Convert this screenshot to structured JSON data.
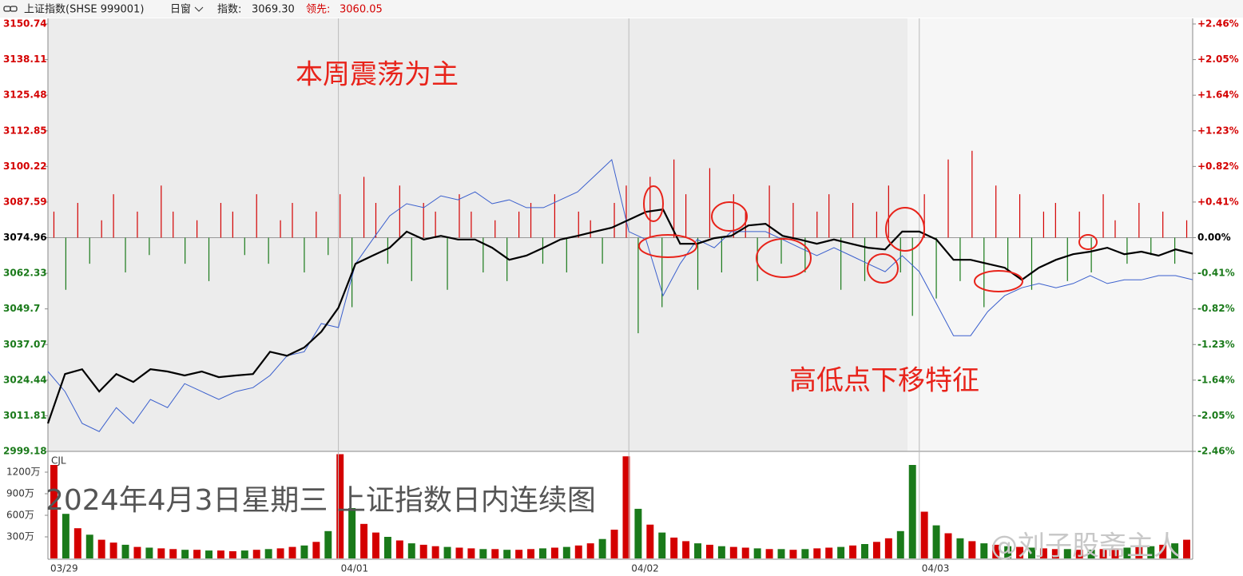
{
  "header": {
    "name": "上证指数(SHSE 999001)",
    "window": "日窗",
    "index_label": "指数:",
    "index_value": "3069.30",
    "lead_label": "领先:",
    "lead_value": "3060.05"
  },
  "chart_data": {
    "type": "line",
    "annotations": [
      "本周震荡为主",
      "高低点下移特征"
    ],
    "title": "2024年4月3日星期三  上证指数日内连续图",
    "watermark": "@刘子股斋主人",
    "categories": [
      "03/29",
      null,
      null,
      null,
      null,
      null,
      null,
      null,
      null,
      null,
      null,
      null,
      null,
      null,
      null,
      null,
      null,
      "04/01",
      null,
      null,
      null,
      null,
      null,
      null,
      null,
      null,
      null,
      null,
      null,
      null,
      null,
      null,
      null,
      null,
      "04/02",
      null,
      null,
      null,
      null,
      null,
      null,
      null,
      null,
      null,
      null,
      null,
      null,
      null,
      null,
      null,
      null,
      "04/03",
      null,
      null,
      null,
      null,
      null,
      null,
      null,
      null,
      null,
      null,
      null,
      null,
      null,
      null,
      null,
      null
    ],
    "series": [
      {
        "name": "上证指数",
        "color": "#000000",
        "values": [
          3009.1,
          3026.6,
          3028.3,
          3020.4,
          3026.6,
          3023.8,
          3028.3,
          3027.5,
          3026.1,
          3027.5,
          3025.5,
          3026.1,
          3026.6,
          3034.5,
          3033.1,
          3036.0,
          3041.6,
          3050.1,
          3065.7,
          3068.6,
          3071.4,
          3077.1,
          3074.3,
          3075.6,
          3074.3,
          3074.3,
          3071.4,
          3067.1,
          3068.6,
          3071.4,
          3074.3,
          3075.6,
          3077.1,
          3078.5,
          3081.3,
          3084.1,
          3085.0,
          3072.8,
          3072.8,
          3074.8,
          3075.6,
          3079.3,
          3079.9,
          3075.6,
          3074.3,
          3072.8,
          3074.3,
          3072.8,
          3071.4,
          3070.8,
          3077.1,
          3077.1,
          3074.3,
          3067.1,
          3067.1,
          3065.7,
          3064.3,
          3060.0,
          3064.3,
          3067.1,
          3069.1,
          3070.0,
          3071.4,
          3069.1,
          3070.0,
          3068.6,
          3070.8,
          3069.3
        ]
      },
      {
        "name": "领先指标",
        "color": "#3a5fcd",
        "values": [
          3027.5,
          3020.4,
          3009.1,
          3006.2,
          3014.7,
          3009.1,
          3017.6,
          3014.7,
          3023.2,
          3020.4,
          3017.6,
          3020.4,
          3021.8,
          3026.1,
          3033.1,
          3034.5,
          3044.5,
          3043.1,
          3065.7,
          3074.3,
          3082.7,
          3087.0,
          3085.6,
          3089.8,
          3088.4,
          3091.2,
          3087.0,
          3088.4,
          3085.6,
          3085.6,
          3088.4,
          3091.2,
          3096.9,
          3102.6,
          3077.1,
          3074.3,
          3054.4,
          3065.7,
          3074.3,
          3071.4,
          3077.1,
          3077.1,
          3077.1,
          3074.3,
          3071.4,
          3068.6,
          3071.4,
          3068.6,
          3065.7,
          3062.9,
          3068.6,
          3062.9,
          3051.6,
          3040.2,
          3040.2,
          3048.7,
          3054.4,
          3057.2,
          3058.7,
          3057.2,
          3058.7,
          3061.5,
          3058.7,
          3060.0,
          3060.0,
          3061.5,
          3061.5,
          3060.05
        ]
      }
    ],
    "breadth": {
      "values": [
        0.3,
        -0.6,
        0.4,
        -0.3,
        0.2,
        0.5,
        -0.4,
        0.3,
        -0.2,
        0.6,
        0.3,
        -0.3,
        0.2,
        -0.5,
        0.4,
        0.3,
        -0.2,
        0.5,
        -0.3,
        0.2,
        0.4,
        -0.4,
        0.3,
        -0.2,
        0.5,
        -0.8,
        0.7,
        0.4,
        -0.3,
        0.6,
        -0.5,
        0.4,
        0.3,
        -0.6,
        0.5,
        0.3,
        -0.4,
        0.2,
        -0.5,
        0.3,
        0.4,
        -0.3,
        0.5,
        -0.4,
        0.3,
        0.2,
        -0.3,
        0.4,
        0.6,
        -1.1,
        0.7,
        -0.8,
        0.9,
        0.5,
        -0.6,
        0.8,
        -0.4,
        0.5,
        0.3,
        -0.5,
        0.6,
        -0.3,
        0.4,
        -0.4,
        0.3,
        0.5,
        -0.6,
        0.4,
        -0.5,
        0.3,
        0.6,
        -0.4,
        -0.9,
        0.5,
        -0.7,
        0.9,
        -0.5,
        1.0,
        -0.8,
        0.6,
        -0.4,
        0.5,
        -0.6,
        0.3,
        0.4,
        -0.5,
        0.3,
        -0.4,
        0.5,
        0.2,
        -0.3,
        0.4,
        -0.2,
        0.3,
        -0.3,
        0.2
      ],
      "up_color": "#d40000",
      "down_color": "#1a7a1a"
    },
    "ylim": [
      2999.18,
      3150.74
    ],
    "yticks": [
      3150.74,
      3138.11,
      3125.48,
      3112.85,
      3100.22,
      3087.59,
      3074.96,
      3062.33,
      3049.7,
      3037.07,
      3024.44,
      3011.81,
      2999.18
    ],
    "y2lim": [
      -2.46,
      2.46
    ],
    "y2ticks": [
      {
        "value": 2.46,
        "label": "+2.46%"
      },
      {
        "value": 2.05,
        "label": "+2.05%"
      },
      {
        "value": 1.64,
        "label": "+1.64%"
      },
      {
        "value": 1.23,
        "label": "+1.23%"
      },
      {
        "value": 0.82,
        "label": "+0.82%"
      },
      {
        "value": 0.41,
        "label": "+0.41%"
      },
      {
        "value": 0,
        "label": "0.00%"
      },
      {
        "value": -0.41,
        "label": "-0.41%"
      },
      {
        "value": -0.82,
        "label": "-0.82%"
      },
      {
        "value": -1.23,
        "label": "-1.23%"
      },
      {
        "value": -1.64,
        "label": "-1.64%"
      },
      {
        "value": -2.05,
        "label": "-2.05%"
      },
      {
        "value": -2.46,
        "label": "-2.46%"
      }
    ],
    "volume": {
      "name": "CJL",
      "ylim": [
        0,
        1489
      ],
      "yticks": [
        {
          "value": 1200,
          "label": "1200万"
        },
        {
          "value": 900,
          "label": "900万"
        },
        {
          "value": 600,
          "label": "600万"
        },
        {
          "value": 300,
          "label": "300万"
        }
      ],
      "values": [
        1300,
        620,
        420,
        330,
        260,
        220,
        190,
        160,
        150,
        140,
        130,
        120,
        120,
        110,
        110,
        100,
        110,
        120,
        130,
        140,
        160,
        180,
        230,
        380,
        1450,
        700,
        480,
        360,
        300,
        250,
        210,
        190,
        170,
        160,
        150,
        140,
        130,
        130,
        120,
        120,
        130,
        140,
        150,
        160,
        180,
        210,
        270,
        400,
        1420,
        690,
        470,
        360,
        290,
        240,
        210,
        190,
        170,
        160,
        150,
        140,
        130,
        130,
        120,
        130,
        140,
        150,
        160,
        180,
        200,
        230,
        280,
        380,
        1300,
        650,
        460,
        350,
        280,
        240,
        210,
        190,
        170,
        160,
        150,
        140,
        130,
        130,
        120,
        120,
        130,
        140,
        150,
        160,
        170,
        190,
        210,
        260
      ]
    }
  }
}
